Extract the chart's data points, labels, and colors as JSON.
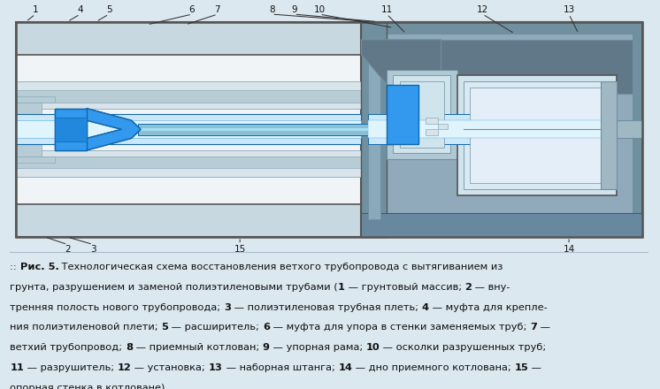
{
  "fig_bg": "#dce8f0",
  "colors": {
    "bg": "#dce8f0",
    "ground": "#c8d8e0",
    "outer_border": "#555555",
    "white_inner": "#f0f4f6",
    "pipe_gray_light": "#d8e4ea",
    "pipe_gray_mid": "#b8ccd6",
    "pipe_gray_dark": "#8aaabb",
    "blue_bright": "#3399ee",
    "blue_mid": "#55aadd",
    "blue_light": "#aad4ee",
    "blue_dark": "#1166aa",
    "blue_very_light": "#cce8f8",
    "pit_dark": "#7090a0",
    "pit_mid": "#90aabb",
    "pit_light": "#b0c8d4",
    "machine_light": "#d0e4ee",
    "machine_gray": "#a0b8c4",
    "dark_top": "#607888",
    "shaft_blue": "#88c0d8",
    "label_color": "#111111",
    "line_color": "#333333",
    "sep_line": "#aabbcc"
  },
  "caption_lines": [
    [
      {
        "text": ":: ",
        "bold": false
      },
      {
        "text": "Рис. 5.",
        "bold": true
      },
      {
        "text": " Технологическая схема восстановления ветхого трубопровода с вытягиванием из",
        "bold": false
      }
    ],
    [
      {
        "text": "грунта, разрушением и заменой полиэтиленовыми трубами (",
        "bold": false
      },
      {
        "text": "1",
        "bold": true
      },
      {
        "text": " — грунтовый массив; ",
        "bold": false
      },
      {
        "text": "2",
        "bold": true
      },
      {
        "text": " — вну-",
        "bold": false
      }
    ],
    [
      {
        "text": "тренняя полость нового трубопровода; ",
        "bold": false
      },
      {
        "text": "3",
        "bold": true
      },
      {
        "text": " — полиэтиленовая трубная плеть; ",
        "bold": false
      },
      {
        "text": "4",
        "bold": true
      },
      {
        "text": " — муфта для крепле-",
        "bold": false
      }
    ],
    [
      {
        "text": "ния полиэтиленовой плети; ",
        "bold": false
      },
      {
        "text": "5",
        "bold": true
      },
      {
        "text": " — расширитель; ",
        "bold": false
      },
      {
        "text": "6",
        "bold": true
      },
      {
        "text": " — муфта для упора в стенки заменяемых труб; ",
        "bold": false
      },
      {
        "text": "7",
        "bold": true
      },
      {
        "text": " —",
        "bold": false
      }
    ],
    [
      {
        "text": "ветхий трубопровод; ",
        "bold": false
      },
      {
        "text": "8",
        "bold": true
      },
      {
        "text": " — приемный котлован; ",
        "bold": false
      },
      {
        "text": "9",
        "bold": true
      },
      {
        "text": " — упорная рама; ",
        "bold": false
      },
      {
        "text": "10",
        "bold": true
      },
      {
        "text": " — осколки разрушенных труб;",
        "bold": false
      }
    ],
    [
      {
        "text": "11",
        "bold": true
      },
      {
        "text": " — разрушитель; ",
        "bold": false
      },
      {
        "text": "12",
        "bold": true
      },
      {
        "text": " — установка; ",
        "bold": false
      },
      {
        "text": "13",
        "bold": true
      },
      {
        "text": " — наборная штанга; ",
        "bold": false
      },
      {
        "text": "14",
        "bold": true
      },
      {
        "text": " — дно приемного котлована; ",
        "bold": false
      },
      {
        "text": "15",
        "bold": true
      },
      {
        "text": " —",
        "bold": false
      }
    ],
    [
      {
        "text": "опорная стенка в котловане)",
        "bold": false
      }
    ]
  ],
  "font_size": 8.2
}
